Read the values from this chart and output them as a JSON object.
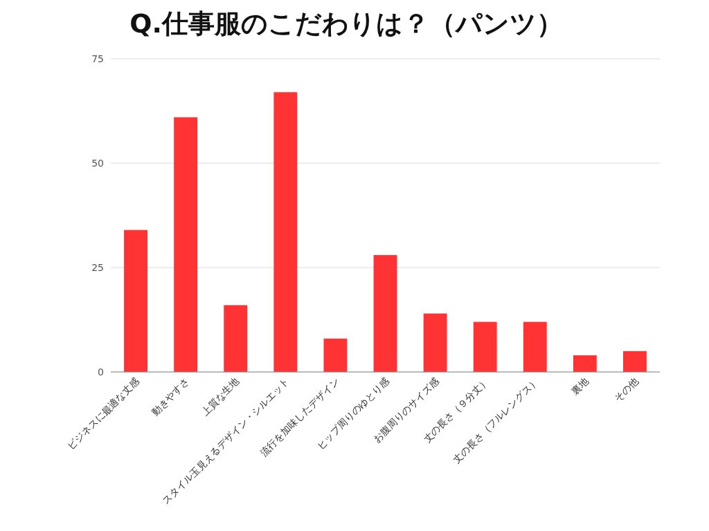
{
  "chart_data": {
    "type": "bar",
    "title": "Q.仕事服のこだわりは？（パンツ）",
    "categories": [
      "ビジネスに最適な丈感",
      "動きやすさ",
      "上質な生地",
      "スタイル玉見えるデザイン・シルエット",
      "流行を加味したデザイン",
      "ヒップ周りのゆとり感",
      "お腹周りのサイズ感",
      "丈の長さ（９分丈）",
      "丈の長さ（フルレングス）",
      "裏地",
      "その他"
    ],
    "values": [
      34,
      61,
      16,
      67,
      8,
      28,
      14,
      12,
      12,
      4,
      5
    ],
    "color": "#ff3333",
    "ylim": [
      0,
      75
    ],
    "yticks": [
      0,
      25,
      50,
      75
    ],
    "grid": "y"
  }
}
